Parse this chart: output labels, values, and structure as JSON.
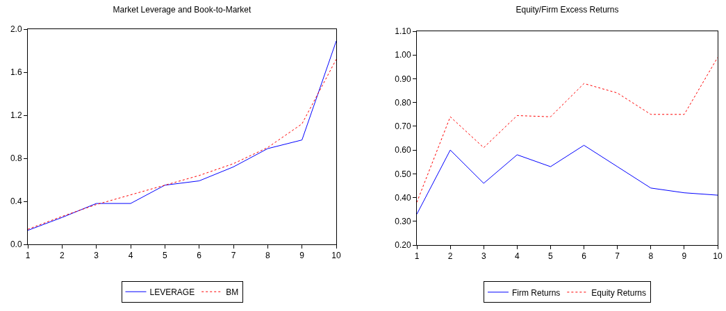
{
  "chart_data": [
    {
      "type": "line",
      "title": "Market Leverage and Book-to-Market",
      "x": [
        1,
        2,
        3,
        4,
        5,
        6,
        7,
        8,
        9,
        10
      ],
      "xlim": [
        1,
        10
      ],
      "xticks": [
        1,
        2,
        3,
        4,
        5,
        6,
        7,
        8,
        9,
        10
      ],
      "ylim": [
        0,
        2
      ],
      "yticks": [
        {
          "value": 0,
          "label": "0.0"
        },
        {
          "value": 0.4,
          "label": "0.4"
        },
        {
          "value": 0.8,
          "label": "0.8"
        },
        {
          "value": 1.2,
          "label": "1.2"
        },
        {
          "value": 1.6,
          "label": "1.6"
        },
        {
          "value": 2,
          "label": "2.0"
        }
      ],
      "legend": "bottom",
      "series": [
        {
          "name": "LEVERAGE",
          "color": "#0000ff",
          "line_style": "solid",
          "values": [
            0.13,
            0.25,
            0.38,
            0.38,
            0.55,
            0.59,
            0.72,
            0.89,
            0.97,
            1.89
          ]
        },
        {
          "name": "BM",
          "color": "#ff0000",
          "line_style": "dotted",
          "values": [
            0.14,
            0.26,
            0.37,
            0.46,
            0.55,
            0.64,
            0.75,
            0.9,
            1.12,
            1.72
          ]
        }
      ]
    },
    {
      "type": "line",
      "title": "Equity/Firm Excess Returns",
      "x": [
        1,
        2,
        3,
        4,
        5,
        6,
        7,
        8,
        9,
        10
      ],
      "xlim": [
        1,
        10
      ],
      "xticks": [
        1,
        2,
        3,
        4,
        5,
        6,
        7,
        8,
        9,
        10
      ],
      "ylim": [
        0.2,
        1.1
      ],
      "yticks": [
        {
          "value": 0.2,
          "label": "0.20"
        },
        {
          "value": 0.3,
          "label": "0.30"
        },
        {
          "value": 0.4,
          "label": "0.40"
        },
        {
          "value": 0.5,
          "label": "0.50"
        },
        {
          "value": 0.6,
          "label": "0.60"
        },
        {
          "value": 0.7,
          "label": "0.70"
        },
        {
          "value": 0.8,
          "label": "0.80"
        },
        {
          "value": 0.9,
          "label": "0.90"
        },
        {
          "value": 1.0,
          "label": "1.00"
        },
        {
          "value": 1.1,
          "label": "1.10"
        }
      ],
      "legend": "bottom",
      "series": [
        {
          "name": "Firm Returns",
          "color": "#0000ff",
          "line_style": "solid",
          "values": [
            0.33,
            0.6,
            0.46,
            0.58,
            0.53,
            0.62,
            0.53,
            0.44,
            0.42,
            0.41
          ]
        },
        {
          "name": "Equity Returns",
          "color": "#ff0000",
          "line_style": "dotted",
          "values": [
            0.38,
            0.74,
            0.61,
            0.745,
            0.74,
            0.88,
            0.84,
            0.75,
            0.75,
            0.99
          ]
        }
      ]
    }
  ]
}
